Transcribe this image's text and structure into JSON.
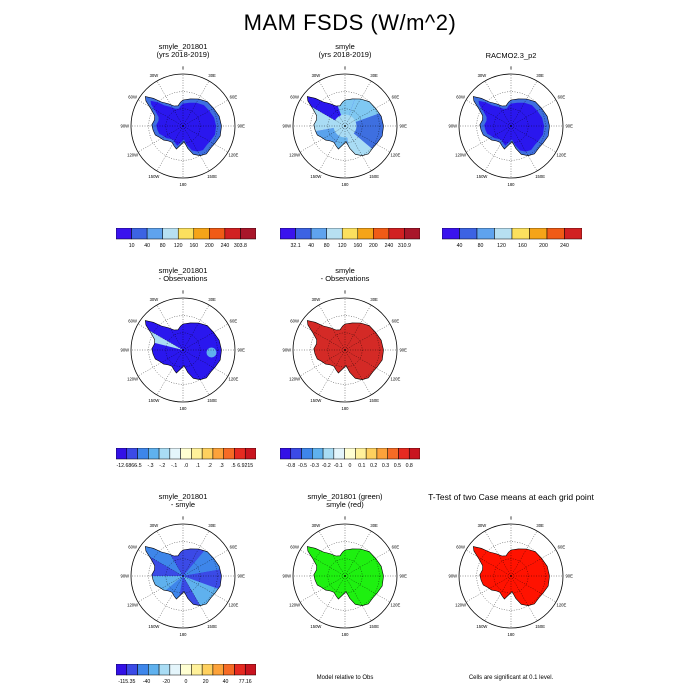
{
  "main_title": "MAM FSDS (W/m^2)",
  "colors": {
    "base_blue": "#2a17ee",
    "shelf_blue": "#3e6fe0",
    "red_fill": "#d42a26",
    "green_fill": "#1ef010",
    "sig_red": "#ff1200"
  },
  "lon_labels": [
    "0",
    "30E",
    "60E",
    "90E",
    "120E",
    "150E",
    "180",
    "150W",
    "120W",
    "90W",
    "60W",
    "30W"
  ],
  "panels": [
    {
      "id": "p1",
      "title": [
        "smyle_201801",
        "(yrs 2018-2019)"
      ],
      "style": "climo"
    },
    {
      "id": "p2",
      "title": [
        "smyle",
        "(yrs 2018-2019)"
      ],
      "style": "climo2"
    },
    {
      "id": "p3",
      "title": [
        "",
        "RACMO2.3_p2"
      ],
      "style": "obs"
    },
    {
      "id": "p4",
      "title": [
        "smyle_201801",
        "- Observations"
      ],
      "style": "bias1"
    },
    {
      "id": "p5",
      "title": [
        "smyle",
        "- Observations"
      ],
      "style": "bias2"
    },
    {
      "id": "p6",
      "title": [
        "smyle_201801",
        "- smyle"
      ],
      "style": "diff"
    },
    {
      "id": "p7",
      "title": [
        "smyle_201801 (green)",
        "smyle (red)"
      ],
      "style": "green"
    },
    {
      "id": "p8",
      "title": [
        "T-Test of two Case means at each grid point",
        ""
      ],
      "style": "ttest"
    }
  ],
  "colorbars": [
    {
      "id": "cb1",
      "colors": [
        "#3a13ee",
        "#3c63e3",
        "#5fa3ee",
        "#b7e0f2",
        "#fbe05e",
        "#f5a418",
        "#f05b16",
        "#d12022",
        "#a8162a"
      ],
      "labels": [
        "10",
        "40",
        "80",
        "120",
        "160",
        "200",
        "240",
        "303.8"
      ]
    },
    {
      "id": "cb2",
      "colors": [
        "#3a13ee",
        "#3c63e3",
        "#5fa3ee",
        "#b7e0f2",
        "#fbe05e",
        "#f5a418",
        "#f05b16",
        "#d12022",
        "#a8162a"
      ],
      "labels": [
        "32.1",
        "40",
        "80",
        "120",
        "160",
        "200",
        "240",
        "310.9"
      ]
    },
    {
      "id": "cb3",
      "colors": [
        "#3a13ee",
        "#3c63e3",
        "#5fa3ee",
        "#b7e0f2",
        "#fbe05e",
        "#f5a418",
        "#f05b16",
        "#d12022"
      ],
      "labels": [
        "40",
        "80",
        "120",
        "160",
        "200",
        "240"
      ]
    },
    {
      "id": "cb4",
      "colors": [
        "#3311e6",
        "#3b4ae6",
        "#3e86ea",
        "#5fb1ee",
        "#a9dcf4",
        "#e4f5fb",
        "#ffffd2",
        "#fff19a",
        "#fed05e",
        "#fca23a",
        "#f66b25",
        "#e62a21",
        "#c9141f"
      ],
      "labels": [
        "-12.6866",
        "-.5",
        "-.3",
        "-.2",
        "-.1",
        ".0",
        ".1",
        ".2",
        ".3",
        ".5",
        "6.9215"
      ]
    },
    {
      "id": "cb5",
      "colors": [
        "#3311e6",
        "#3b4ae6",
        "#3e86ea",
        "#5fb1ee",
        "#a9dcf4",
        "#e4f5fb",
        "#ffffd2",
        "#fff19a",
        "#fed05e",
        "#fca23a",
        "#f66b25",
        "#e62a21",
        "#c9141f"
      ],
      "labels": [
        "-0.8",
        "-0.5",
        "-0.3",
        "-0.2",
        "-0.1",
        "0",
        "0.1",
        "0.2",
        "0.3",
        "0.5",
        "0.8"
      ]
    },
    {
      "id": "cb6",
      "colors": [
        "#3311e6",
        "#3b4ae6",
        "#3e86ea",
        "#5fb1ee",
        "#a9dcf4",
        "#e4f5fb",
        "#ffffd2",
        "#fff19a",
        "#fed05e",
        "#fca23a",
        "#f66b25",
        "#e62a21",
        "#c9141f"
      ],
      "labels": [
        "-115.35",
        "-40",
        "-20",
        "0",
        "20",
        "40",
        "77.16"
      ]
    }
  ],
  "footnotes": {
    "model_relative": "Model relative to Obs",
    "significance": "Cells are significant at 0.1 level."
  },
  "chart_data": [
    {
      "type": "heatmap",
      "title": "smyle_201801 (yrs 2018-2019)",
      "projection": "south polar stereographic",
      "colorbar_labels": [
        "10",
        "40",
        "80",
        "120",
        "160",
        "200",
        "240",
        "303.8"
      ]
    },
    {
      "type": "heatmap",
      "title": "smyle (yrs 2018-2019)",
      "projection": "south polar stereographic",
      "colorbar_labels": [
        "32.1",
        "40",
        "80",
        "120",
        "160",
        "200",
        "240",
        "310.9"
      ]
    },
    {
      "type": "heatmap",
      "title": "RACMO2.3_p2",
      "projection": "south polar stereographic",
      "colorbar_labels": [
        "40",
        "80",
        "120",
        "160",
        "200",
        "240"
      ]
    },
    {
      "type": "heatmap",
      "title": "smyle_201801 - Observations",
      "projection": "south polar stereographic",
      "colorbar_labels": [
        "-12.6866",
        "-.5",
        "-.3",
        "-.2",
        "-.1",
        ".0",
        ".1",
        ".2",
        ".3",
        ".5",
        "6.9215"
      ]
    },
    {
      "type": "heatmap",
      "title": "smyle - Observations",
      "projection": "south polar stereographic",
      "colorbar_labels": [
        "-0.8",
        "-0.5",
        "-0.3",
        "-0.2",
        "-0.1",
        "0",
        "0.1",
        "0.2",
        "0.3",
        "0.5",
        "0.8"
      ]
    },
    {
      "type": "heatmap",
      "title": "smyle_201801 - smyle",
      "projection": "south polar stereographic",
      "colorbar_labels": [
        "-115.35",
        "-40",
        "-20",
        "0",
        "20",
        "40",
        "77.16"
      ]
    },
    {
      "type": "heatmap",
      "title": "smyle_201801 (green) smyle (red)",
      "projection": "south polar stereographic",
      "footnote": "Model relative to Obs"
    },
    {
      "type": "heatmap",
      "title": "T-Test of two Case means at each grid point",
      "projection": "south polar stereographic",
      "footnote": "Cells are significant at 0.1 level."
    }
  ]
}
